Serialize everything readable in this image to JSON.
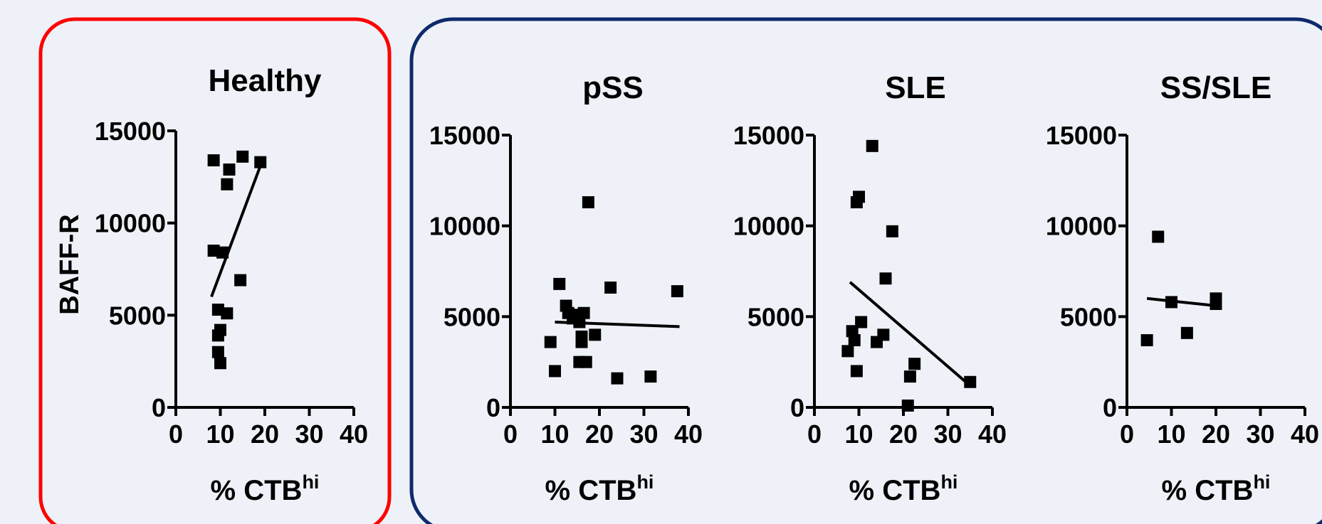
{
  "colors": {
    "background": "#eef2f8",
    "healthy_border": "#ff0000",
    "disease_border": "#0d2a6b",
    "marks": "#000000"
  },
  "chart_data": [
    {
      "type": "scatter",
      "title": "Healthy",
      "ylabel": "BAFF-R",
      "xlabel": "% CTB",
      "xlabel_sup": "hi",
      "xlim": [
        0,
        40
      ],
      "ylim": [
        0,
        15000
      ],
      "xticks": [
        0,
        10,
        20,
        30,
        40
      ],
      "yticks": [
        0,
        5000,
        10000,
        15000
      ],
      "points": [
        [
          8.5,
          13400
        ],
        [
          12,
          12900
        ],
        [
          11.5,
          12100
        ],
        [
          15,
          13600
        ],
        [
          19,
          13300
        ],
        [
          8.5,
          8500
        ],
        [
          10.5,
          8400
        ],
        [
          14.5,
          6900
        ],
        [
          9.5,
          5300
        ],
        [
          11.5,
          5100
        ],
        [
          10,
          4200
        ],
        [
          9.5,
          3900
        ],
        [
          9.5,
          3000
        ],
        [
          10,
          2400
        ]
      ],
      "fit_line": [
        [
          8,
          6000
        ],
        [
          19,
          13100
        ]
      ]
    },
    {
      "type": "scatter",
      "title": "pSS",
      "ylabel": "",
      "xlabel": "% CTB",
      "xlabel_sup": "hi",
      "xlim": [
        0,
        40
      ],
      "ylim": [
        0,
        15000
      ],
      "xticks": [
        0,
        10,
        20,
        30,
        40
      ],
      "yticks": [
        0,
        5000,
        10000,
        15000
      ],
      "points": [
        [
          17.5,
          11300
        ],
        [
          11,
          6800
        ],
        [
          22.5,
          6600
        ],
        [
          37.5,
          6400
        ],
        [
          12.5,
          5600
        ],
        [
          13,
          5200
        ],
        [
          15,
          5100
        ],
        [
          16.5,
          5200
        ],
        [
          14,
          4900
        ],
        [
          15.5,
          4700
        ],
        [
          19,
          4000
        ],
        [
          16,
          3900
        ],
        [
          16,
          3600
        ],
        [
          9,
          3600
        ],
        [
          15.5,
          2500
        ],
        [
          17,
          2500
        ],
        [
          10,
          2000
        ],
        [
          24,
          1600
        ],
        [
          31.5,
          1700
        ]
      ],
      "fit_line": [
        [
          10,
          4700
        ],
        [
          38,
          4450
        ]
      ]
    },
    {
      "type": "scatter",
      "title": "SLE",
      "ylabel": "",
      "xlabel": "% CTB",
      "xlabel_sup": "hi",
      "xlim": [
        0,
        40
      ],
      "ylim": [
        0,
        15000
      ],
      "xticks": [
        0,
        10,
        20,
        30,
        40
      ],
      "yticks": [
        0,
        5000,
        10000,
        15000
      ],
      "points": [
        [
          13,
          14400
        ],
        [
          10,
          11600
        ],
        [
          9.5,
          11300
        ],
        [
          17.5,
          9700
        ],
        [
          16,
          7100
        ],
        [
          10.5,
          4700
        ],
        [
          8.5,
          4200
        ],
        [
          15.5,
          4000
        ],
        [
          14,
          3600
        ],
        [
          9,
          3700
        ],
        [
          7.5,
          3100
        ],
        [
          22.5,
          2400
        ],
        [
          9.5,
          2000
        ],
        [
          21.5,
          1700
        ],
        [
          35,
          1400
        ],
        [
          21,
          100
        ]
      ],
      "fit_line": [
        [
          8,
          6900
        ],
        [
          34.5,
          1300
        ]
      ]
    },
    {
      "type": "scatter",
      "title": "SS/SLE",
      "ylabel": "",
      "xlabel": "% CTB",
      "xlabel_sup": "hi",
      "xlim": [
        0,
        40
      ],
      "ylim": [
        0,
        15000
      ],
      "xticks": [
        0,
        10,
        20,
        30,
        40
      ],
      "yticks": [
        0,
        5000,
        10000,
        15000
      ],
      "points": [
        [
          7,
          9400
        ],
        [
          10,
          5800
        ],
        [
          20,
          6000
        ],
        [
          20,
          5700
        ],
        [
          13.5,
          4100
        ],
        [
          4.5,
          3700
        ]
      ],
      "fit_line": [
        [
          4.5,
          6000
        ],
        [
          20,
          5600
        ]
      ]
    }
  ]
}
